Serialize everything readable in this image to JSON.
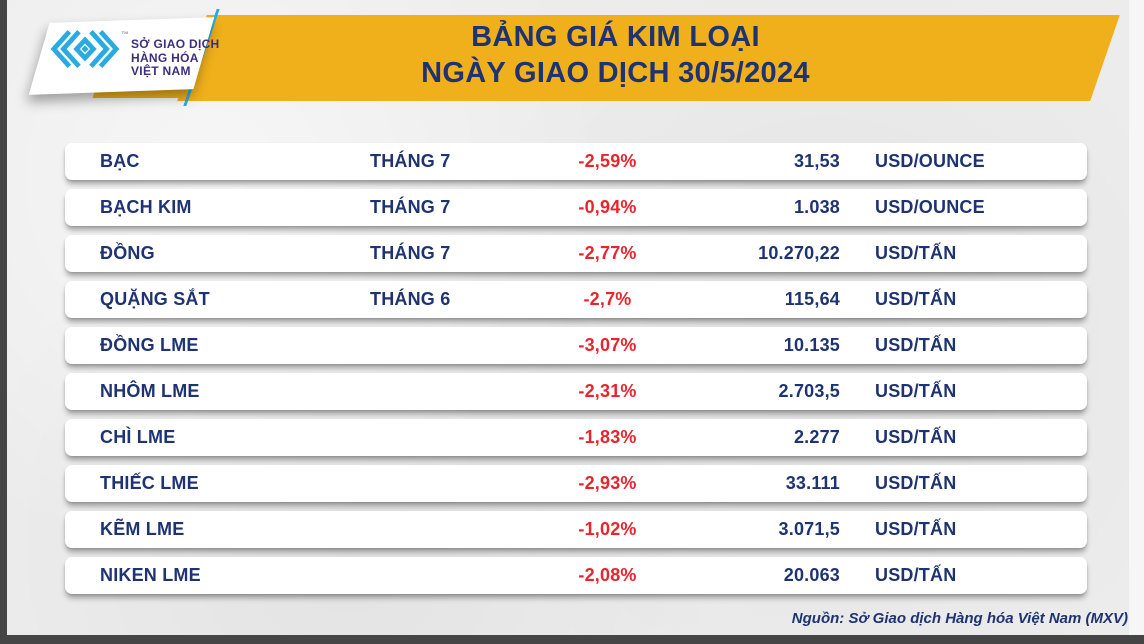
{
  "colors": {
    "banner_yellow": "#f0b01c",
    "navy": "#1e3372",
    "red": "#e9242c",
    "logo_cyan": "#29abe2",
    "logo_purple": "#3c2e7c",
    "background": "#ececec"
  },
  "logo": {
    "org_line1": "SỞ GIAO DỊCH",
    "org_line2": "HÀNG HÓA",
    "org_line3": "VIỆT NAM",
    "trademark": "™"
  },
  "footer": {
    "source": "Nguồn: Sở Giao dịch Hàng hóa Việt Nam (MXV)"
  },
  "chart_data": {
    "type": "table",
    "title": "BẢNG GIÁ KIM LOẠI",
    "subtitle": "NGÀY GIAO DỊCH 30/5/2024",
    "columns": [
      "commodity",
      "month",
      "change",
      "price",
      "unit"
    ],
    "rows": [
      {
        "commodity": "BẠC",
        "month": "THÁNG 7",
        "change": "-2,59%",
        "price": "31,53",
        "unit": "USD/OUNCE"
      },
      {
        "commodity": "BẠCH KIM",
        "month": "THÁNG 7",
        "change": "-0,94%",
        "price": "1.038",
        "unit": "USD/OUNCE"
      },
      {
        "commodity": "ĐỒNG",
        "month": "THÁNG 7",
        "change": "-2,77%",
        "price": "10.270,22",
        "unit": "USD/TẤN"
      },
      {
        "commodity": "QUẶNG SẮT",
        "month": "THÁNG 6",
        "change": "-2,7%",
        "price": "115,64",
        "unit": "USD/TẤN"
      },
      {
        "commodity": "ĐỒNG LME",
        "month": "",
        "change": "-3,07%",
        "price": "10.135",
        "unit": "USD/TẤN"
      },
      {
        "commodity": "NHÔM LME",
        "month": "",
        "change": "-2,31%",
        "price": "2.703,5",
        "unit": "USD/TẤN"
      },
      {
        "commodity": "CHÌ LME",
        "month": "",
        "change": "-1,83%",
        "price": "2.277",
        "unit": "USD/TẤN"
      },
      {
        "commodity": "THIẾC LME",
        "month": "",
        "change": "-2,93%",
        "price": "33.111",
        "unit": "USD/TẤN"
      },
      {
        "commodity": "KẼM LME",
        "month": "",
        "change": "-1,02%",
        "price": "3.071,5",
        "unit": "USD/TẤN"
      },
      {
        "commodity": "NIKEN LME",
        "month": "",
        "change": "-2,08%",
        "price": "20.063",
        "unit": "USD/TẤN"
      }
    ]
  }
}
